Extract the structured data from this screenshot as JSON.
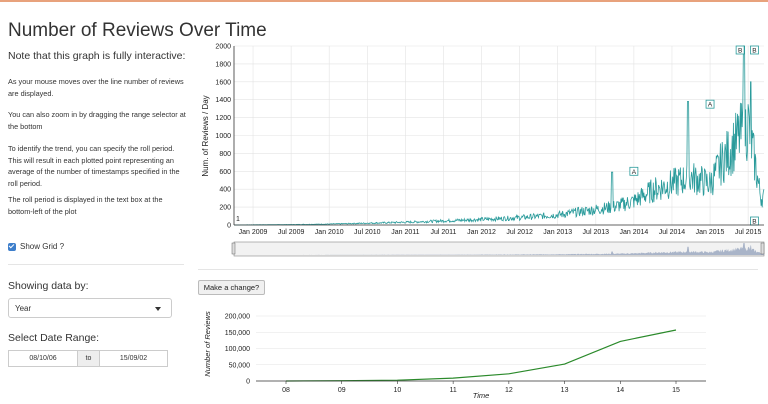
{
  "page": {
    "title": "Number of Reviews Over Time"
  },
  "sidebar": {
    "note": "Note that this graph is fully interactive:",
    "paragraphs": [
      "As your mouse moves over the line number of reviews are displayed.",
      "You can also zoom in by dragging the range selector at the bottom",
      "To identify the trend, you can specify the roll period. This will result in each plotted point representing an average of the number of timestamps specified in the roll period.",
      "The roll period is displayed in the text box at the bottom-left of the plot"
    ],
    "show_grid_label": "Show Grid ?",
    "show_grid_checked": true,
    "showing_by_label": "Showing data by:",
    "showing_by_value": "Year",
    "date_range_label": "Select Date Range:",
    "date_from": "08/10/06",
    "date_to_label": "to",
    "date_to": "15/09/02"
  },
  "main": {
    "button_label": "Make a change?"
  },
  "colors": {
    "series_teal": "#2a9b9b",
    "series_green": "#2b8a2b",
    "accent_top": "#e8a27c",
    "range_fill": "#a9b4c8"
  },
  "chart_data": [
    {
      "type": "line",
      "ylabel": "Num. of Reviews / Day",
      "xlabel": "",
      "ylim": [
        0,
        2000
      ],
      "yticks": [
        0,
        200,
        400,
        600,
        800,
        1000,
        1200,
        1400,
        1600,
        1800,
        2000
      ],
      "xticks": [
        "Jan 2009",
        "Jul 2009",
        "Jan 2010",
        "Jul 2010",
        "Jan 2011",
        "Jul 2011",
        "Jan 2012",
        "Jul 2012",
        "Jan 2013",
        "Jul 2013",
        "Jan 2014",
        "Jul 2014",
        "Jan 2015",
        "Jul 2015"
      ],
      "roll_period": "1",
      "grid": true,
      "series": [
        {
          "x": [
            "2008-10",
            "2009-01",
            "2009-07",
            "2010-01",
            "2010-07",
            "2011-01",
            "2011-07",
            "2012-01",
            "2012-04",
            "2012-07",
            "2012-10",
            "2013-01",
            "2013-04",
            "2013-07",
            "2013-10",
            "2014-01",
            "2014-04",
            "2014-07",
            "2014-10",
            "2015-01",
            "2015-03",
            "2015-05",
            "2015-07",
            "2015-09"
          ],
          "y": [
            0,
            2,
            5,
            10,
            20,
            30,
            45,
            60,
            70,
            80,
            95,
            110,
            140,
            170,
            200,
            260,
            380,
            450,
            520,
            450,
            700,
            900,
            1100,
            300
          ]
        }
      ],
      "annotations": [
        {
          "label": "A",
          "x": "2014-01",
          "y": 600
        },
        {
          "label": "A",
          "x": "2015-01",
          "y": 1350
        },
        {
          "label": "B",
          "x": "2015-07",
          "y": 1980
        },
        {
          "label": "B",
          "x": "2015-08",
          "y": 1970
        },
        {
          "label": "B",
          "x": "2015-08",
          "y": 5
        }
      ]
    },
    {
      "type": "line",
      "xlabel": "Time",
      "ylabel": "Number of Reviews",
      "ylim": [
        0,
        200000
      ],
      "yticks": [
        "0",
        "50,000",
        "100,000",
        "150,000",
        "200,000"
      ],
      "categories": [
        "08",
        "09",
        "10",
        "11",
        "12",
        "13",
        "14",
        "15"
      ],
      "series": [
        {
          "values": [
            100,
            1000,
            2500,
            9000,
            22000,
            52000,
            122000,
            157000
          ]
        }
      ]
    }
  ]
}
